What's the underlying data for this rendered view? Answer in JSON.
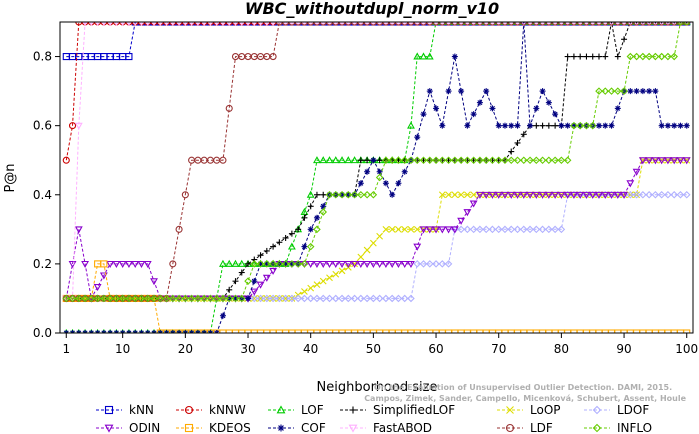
{
  "chart_data": {
    "type": "line",
    "title": "WBC_withoutdupl_norm_v10",
    "xlabel": "Neighborhood size",
    "ylabel": "P@n",
    "xlim": [
      0,
      101
    ],
    "ylim": [
      0,
      0.9
    ],
    "x_ticks": [
      1,
      10,
      20,
      30,
      40,
      50,
      60,
      70,
      80,
      90,
      100
    ],
    "y_ticks": [
      0.0,
      0.2,
      0.4,
      0.6,
      0.8
    ],
    "y_tick_labels": [
      "0.0",
      "0.2",
      "0.4",
      "0.6",
      "0.8"
    ],
    "grid": false,
    "legend_position": "bottom",
    "credit_lines": [
      "Campos, Zimek, Sander, Campello, Micenková, Schubert, Assent, Houle",
      "On the Evaluation of Unsupervised Outlier Detection. DAMI, 2015."
    ],
    "series": [
      {
        "name": "kNN",
        "color": "#0000cc",
        "marker": "square",
        "points": [
          [
            1,
            0.8
          ],
          [
            11,
            0.8
          ],
          [
            12,
            0.9
          ],
          [
            100,
            0.9
          ]
        ]
      },
      {
        "name": "kNNW",
        "color": "#cc0000",
        "marker": "circle",
        "points": [
          [
            1,
            0.5
          ],
          [
            2,
            0.6
          ],
          [
            3,
            0.9
          ],
          [
            100,
            0.9
          ]
        ]
      },
      {
        "name": "LOF",
        "color": "#00cc00",
        "marker": "triangle",
        "points": [
          [
            1,
            0.0
          ],
          [
            24,
            0.0
          ],
          [
            26,
            0.2
          ],
          [
            36,
            0.2
          ],
          [
            38,
            0.3
          ],
          [
            40,
            0.4
          ],
          [
            41,
            0.5
          ],
          [
            55,
            0.5
          ],
          [
            56,
            0.6
          ],
          [
            57,
            0.8
          ],
          [
            59,
            0.8
          ],
          [
            60,
            0.9
          ],
          [
            100,
            0.9
          ]
        ]
      },
      {
        "name": "SimplifiedLOF",
        "color": "#000000",
        "marker": "plus",
        "points": [
          [
            1,
            0.1
          ],
          [
            24,
            0.1
          ],
          [
            26,
            0.1
          ],
          [
            30,
            0.2
          ],
          [
            38,
            0.3
          ],
          [
            41,
            0.4
          ],
          [
            47,
            0.4
          ],
          [
            48,
            0.5
          ],
          [
            71,
            0.5
          ],
          [
            75,
            0.6
          ],
          [
            80,
            0.6
          ],
          [
            81,
            0.8
          ],
          [
            87,
            0.8
          ],
          [
            88,
            0.9
          ],
          [
            89,
            0.8
          ],
          [
            91,
            0.9
          ],
          [
            100,
            0.9
          ]
        ]
      },
      {
        "name": "LoOP",
        "color": "#dddd00",
        "marker": "x",
        "points": [
          [
            1,
            0.1
          ],
          [
            35,
            0.1
          ],
          [
            37,
            0.1
          ],
          [
            47,
            0.2
          ],
          [
            52,
            0.3
          ],
          [
            60,
            0.3
          ],
          [
            61,
            0.4
          ],
          [
            92,
            0.4
          ],
          [
            93,
            0.5
          ],
          [
            100,
            0.5
          ]
        ]
      },
      {
        "name": "LDOF",
        "color": "#b0b0ff",
        "marker": "diamond",
        "points": [
          [
            1,
            0.1
          ],
          [
            35,
            0.1
          ],
          [
            36,
            0.1
          ],
          [
            56,
            0.1
          ],
          [
            57,
            0.2
          ],
          [
            62,
            0.2
          ],
          [
            63,
            0.3
          ],
          [
            80,
            0.3
          ],
          [
            81,
            0.4
          ],
          [
            100,
            0.4
          ]
        ]
      },
      {
        "name": "ODIN",
        "color": "#8800cc",
        "marker": "triangle-down",
        "points": [
          [
            1,
            0.1
          ],
          [
            2,
            0.2
          ],
          [
            3,
            0.3
          ],
          [
            4,
            0.2
          ],
          [
            5,
            0.1
          ],
          [
            8,
            0.2
          ],
          [
            14,
            0.2
          ],
          [
            16,
            0.1
          ],
          [
            24,
            0.1
          ],
          [
            30,
            0.1
          ],
          [
            35,
            0.2
          ],
          [
            43,
            0.2
          ],
          [
            46,
            0.2
          ],
          [
            56,
            0.2
          ],
          [
            58,
            0.3
          ],
          [
            63,
            0.3
          ],
          [
            67,
            0.4
          ],
          [
            70,
            0.4
          ],
          [
            73,
            0.4
          ],
          [
            80,
            0.4
          ],
          [
            82,
            0.4
          ],
          [
            85,
            0.4
          ],
          [
            90,
            0.4
          ],
          [
            93,
            0.5
          ],
          [
            99,
            0.5
          ],
          [
            100,
            0.5
          ]
        ]
      },
      {
        "name": "KDEOS",
        "color": "#ffaa00",
        "marker": "square",
        "points": [
          [
            1,
            0.1
          ],
          [
            5,
            0.1
          ],
          [
            6,
            0.2
          ],
          [
            7,
            0.2
          ],
          [
            8,
            0.1
          ],
          [
            15,
            0.1
          ],
          [
            16,
            0.0
          ],
          [
            100,
            0.0
          ]
        ]
      },
      {
        "name": "COF",
        "color": "#000080",
        "marker": "star",
        "points": [
          [
            1,
            0.0
          ],
          [
            25,
            0.0
          ],
          [
            27,
            0.1
          ],
          [
            30,
            0.1
          ],
          [
            32,
            0.2
          ],
          [
            38,
            0.2
          ],
          [
            40,
            0.3
          ],
          [
            43,
            0.4
          ],
          [
            47,
            0.4
          ],
          [
            50,
            0.5
          ],
          [
            53,
            0.4
          ],
          [
            56,
            0.5
          ],
          [
            59,
            0.7
          ],
          [
            61,
            0.6
          ],
          [
            63,
            0.8
          ],
          [
            65,
            0.6
          ],
          [
            68,
            0.7
          ],
          [
            70,
            0.6
          ],
          [
            73,
            0.6
          ],
          [
            74,
            0.9
          ],
          [
            75,
            0.6
          ],
          [
            77,
            0.7
          ],
          [
            80,
            0.6
          ],
          [
            82,
            0.6
          ],
          [
            88,
            0.6
          ],
          [
            90,
            0.7
          ],
          [
            95,
            0.7
          ],
          [
            96,
            0.6
          ],
          [
            100,
            0.6
          ]
        ]
      },
      {
        "name": "FastABOD",
        "color": "#ffb0ff",
        "marker": "triangle-down",
        "points": [
          [
            1,
            0.1
          ],
          [
            2,
            0.1
          ],
          [
            3,
            0.6
          ],
          [
            4,
            0.9
          ],
          [
            100,
            0.9
          ]
        ]
      },
      {
        "name": "LDF",
        "color": "#993333",
        "marker": "circle",
        "points": [
          [
            1,
            0.1
          ],
          [
            17,
            0.1
          ],
          [
            19,
            0.3
          ],
          [
            21,
            0.5
          ],
          [
            26,
            0.5
          ],
          [
            28,
            0.8
          ],
          [
            34,
            0.8
          ],
          [
            35,
            0.9
          ],
          [
            100,
            0.9
          ]
        ]
      },
      {
        "name": "INFLO",
        "color": "#66cc00",
        "marker": "diamond",
        "points": [
          [
            1,
            0.1
          ],
          [
            24,
            0.1
          ],
          [
            27,
            0.1
          ],
          [
            29,
            0.1
          ],
          [
            31,
            0.2
          ],
          [
            37,
            0.2
          ],
          [
            39,
            0.2
          ],
          [
            43,
            0.4
          ],
          [
            50,
            0.4
          ],
          [
            52,
            0.5
          ],
          [
            71,
            0.5
          ],
          [
            76,
            0.5
          ],
          [
            81,
            0.5
          ],
          [
            82,
            0.6
          ],
          [
            85,
            0.6
          ],
          [
            86,
            0.7
          ],
          [
            90,
            0.7
          ],
          [
            91,
            0.8
          ],
          [
            98,
            0.8
          ],
          [
            99,
            0.9
          ],
          [
            100,
            0.9
          ]
        ]
      }
    ]
  }
}
